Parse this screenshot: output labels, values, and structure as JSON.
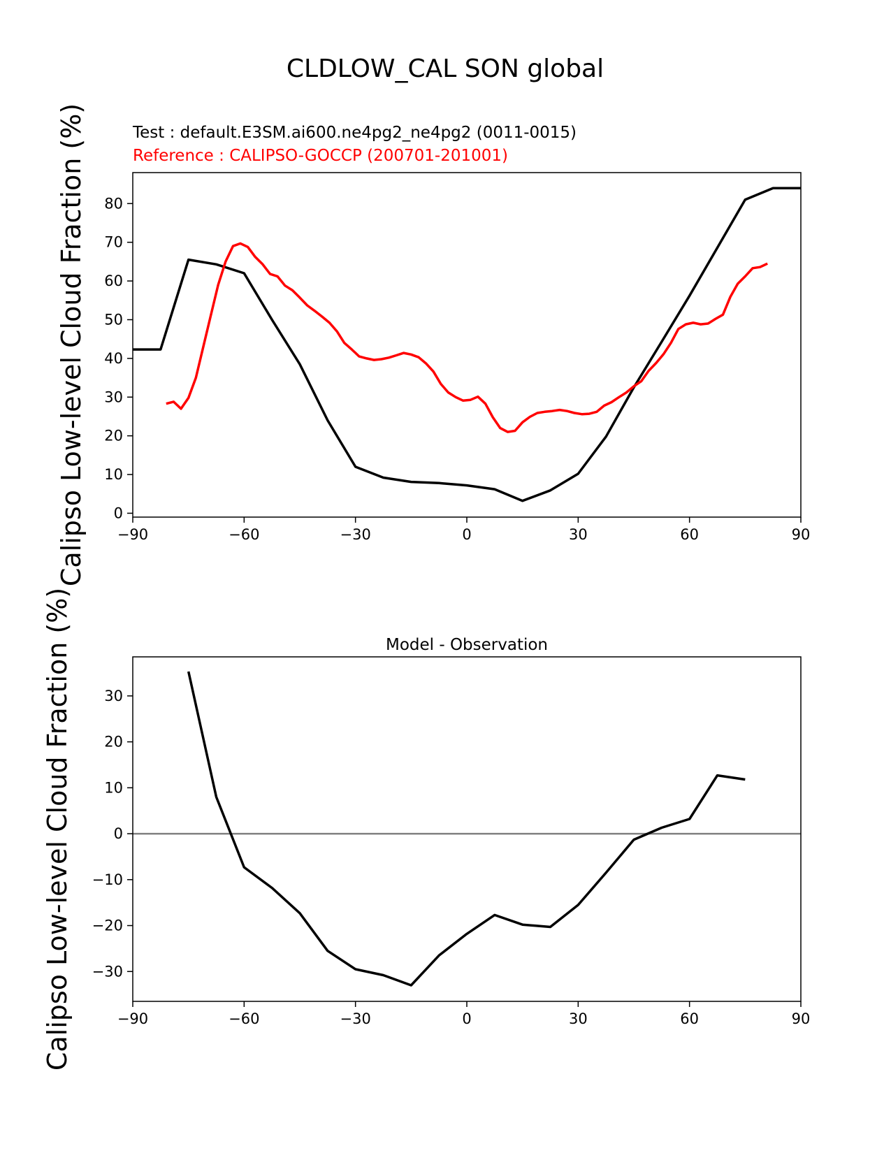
{
  "figure": {
    "suptitle": "CLDLOW_CAL SON global",
    "test_label": "Test : default.E3SM.ai600.ne4pg2_ne4pg2 (0011-0015)",
    "reference_label": "Reference : CALIPSO-GOCCP (200701-201001)"
  },
  "colors": {
    "test": "#000000",
    "reference": "#ff0000",
    "zero_line": "#808080"
  },
  "chart_data": [
    {
      "type": "line",
      "title": "",
      "xlabel": "",
      "ylabel": "Calipso Low-level Cloud Fraction (%)",
      "xlim": [
        -90,
        90
      ],
      "ylim": [
        -1,
        88
      ],
      "xticks": [
        -90,
        -60,
        -30,
        0,
        30,
        60,
        90
      ],
      "yticks": [
        0,
        10,
        20,
        30,
        40,
        50,
        60,
        70,
        80
      ],
      "series": [
        {
          "name": "Test",
          "color": "#000000",
          "x": [
            -90,
            -82.5,
            -75,
            -67.5,
            -60,
            -52.5,
            -45,
            -37.5,
            -30,
            -22.5,
            -15,
            -7.5,
            0,
            7.5,
            15,
            22.5,
            30,
            37.5,
            45,
            52.5,
            60,
            67.5,
            75,
            82.5,
            90
          ],
          "y": [
            42.3,
            42.3,
            65.5,
            64.3,
            62,
            50,
            38.5,
            24,
            12,
            9.2,
            8.1,
            7.8,
            7.2,
            6.2,
            3.2,
            5.9,
            10.2,
            19.8,
            32.5,
            44.3,
            56.2,
            68.6,
            81,
            84,
            84
          ]
        },
        {
          "name": "Reference",
          "color": "#ff0000",
          "x": [
            -81,
            -79,
            -77,
            -75,
            -73,
            -71,
            -69,
            -67,
            -65,
            -63,
            -61,
            -59,
            -57,
            -55,
            -53,
            -51,
            -49,
            -47,
            -45,
            -43,
            -41,
            -39,
            -37,
            -35,
            -33,
            -31,
            -29,
            -27,
            -25,
            -23,
            -21,
            -19,
            -17,
            -15,
            -13,
            -11,
            -9,
            -7,
            -5,
            -3,
            -1,
            1,
            3,
            5,
            7,
            9,
            11,
            13,
            15,
            17,
            19,
            21,
            23,
            25,
            27,
            29,
            31,
            33,
            35,
            37,
            39,
            41,
            43,
            45,
            47,
            49,
            51,
            53,
            55,
            57,
            59,
            61,
            63,
            65,
            67,
            69,
            71,
            73,
            75,
            77,
            79,
            81
          ],
          "y": [
            28.3,
            28.8,
            27,
            29.8,
            35,
            43,
            51,
            59,
            65,
            69,
            69.7,
            68.8,
            66.2,
            64.3,
            61.8,
            61.2,
            58.8,
            57.6,
            55.7,
            53.7,
            52.3,
            50.8,
            49.2,
            47,
            44,
            42.3,
            40.5,
            40,
            39.6,
            39.8,
            40.2,
            40.8,
            41.4,
            41,
            40.3,
            38.7,
            36.6,
            33.4,
            31.2,
            30,
            29.1,
            29.3,
            30.1,
            28.3,
            24.8,
            22,
            21,
            21.3,
            23.5,
            24.9,
            25.9,
            26.2,
            26.4,
            26.7,
            26.4,
            25.9,
            25.6,
            25.7,
            26.2,
            27.8,
            28.7,
            30,
            31.2,
            32.8,
            34.1,
            36.8,
            38.8,
            41.1,
            44,
            47.6,
            48.8,
            49.2,
            48.8,
            49,
            50.2,
            51.3,
            55.9,
            59.3,
            61.2,
            63.3,
            63.6,
            64.5
          ]
        }
      ]
    },
    {
      "type": "line",
      "title": "Model - Observation",
      "xlabel": "",
      "ylabel": "Calipso Low-level Cloud Fraction (%)",
      "xlim": [
        -90,
        90
      ],
      "ylim": [
        -36.5,
        38.5
      ],
      "xticks": [
        -90,
        -60,
        -30,
        0,
        30,
        60,
        90
      ],
      "yticks": [
        -30,
        -20,
        -10,
        0,
        10,
        20,
        30
      ],
      "zero_line": true,
      "series": [
        {
          "name": "Model - Observation",
          "color": "#000000",
          "x": [
            -75,
            -67.5,
            -60,
            -52.5,
            -45,
            -37.5,
            -30,
            -22.5,
            -15,
            -7.5,
            0,
            7.5,
            15,
            22.5,
            30,
            37.5,
            45,
            52.5,
            60,
            67.5,
            75
          ],
          "y": [
            35.3,
            8,
            -7.3,
            -11.8,
            -17.3,
            -25.5,
            -29.5,
            -30.8,
            -33,
            -26.5,
            -21.8,
            -17.7,
            -19.8,
            -20.3,
            -15.5,
            -8.5,
            -1.3,
            1.3,
            3.2,
            12.7,
            11.8
          ]
        }
      ]
    }
  ]
}
